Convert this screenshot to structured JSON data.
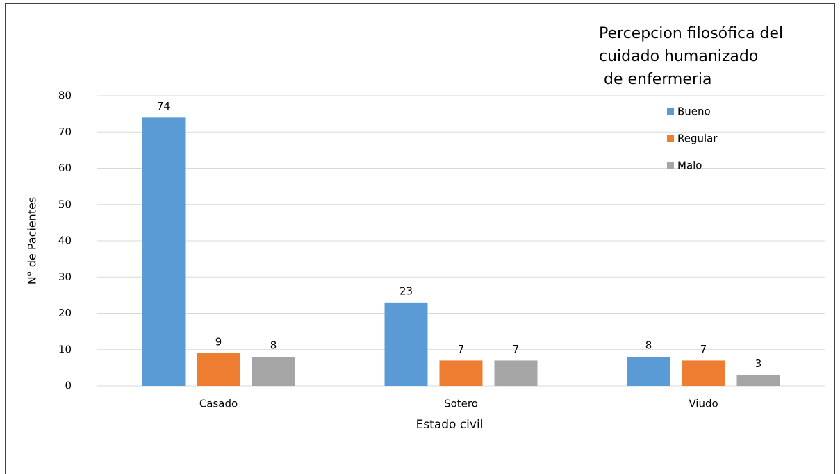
{
  "chart_data": {
    "type": "bar",
    "title": [
      "Percepcion filosófica del",
      "cuidado humanizado",
      " de enfermeria"
    ],
    "x_label": "Estado civil",
    "y_label": "N° de Pacientes",
    "categories": [
      "Casado",
      "Sotero",
      "Viudo"
    ],
    "series": [
      {
        "name": "Bueno",
        "color": "#5b9bd5",
        "values": [
          74,
          23,
          8
        ]
      },
      {
        "name": "Regular",
        "color": "#ed7d31",
        "values": [
          9,
          7,
          7
        ]
      },
      {
        "name": "Malo",
        "color": "#a5a5a5",
        "values": [
          8,
          7,
          3
        ]
      }
    ],
    "ylim": [
      0,
      80
    ],
    "yticks": [
      0,
      10,
      20,
      30,
      40,
      50,
      60,
      70,
      80
    ],
    "grid": true,
    "legend": "upper right",
    "data_labels": true
  }
}
